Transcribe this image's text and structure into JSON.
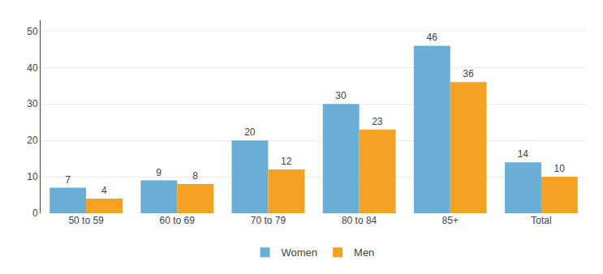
{
  "chart_data": {
    "type": "bar",
    "categories": [
      "50 to 59",
      "60 to 69",
      "70 to 79",
      "80 to 84",
      "85+",
      "Total"
    ],
    "series": [
      {
        "name": "Women",
        "color": "#6aadd5",
        "values": [
          7,
          9,
          20,
          30,
          46,
          14
        ]
      },
      {
        "name": "Men",
        "color": "#f4a223",
        "values": [
          4,
          8,
          12,
          23,
          36,
          10
        ]
      }
    ],
    "ylim": [
      0,
      53
    ],
    "yticks": [
      0,
      10,
      20,
      30,
      40,
      50
    ],
    "grid": true,
    "legend": "bottom",
    "data_labels": true
  }
}
